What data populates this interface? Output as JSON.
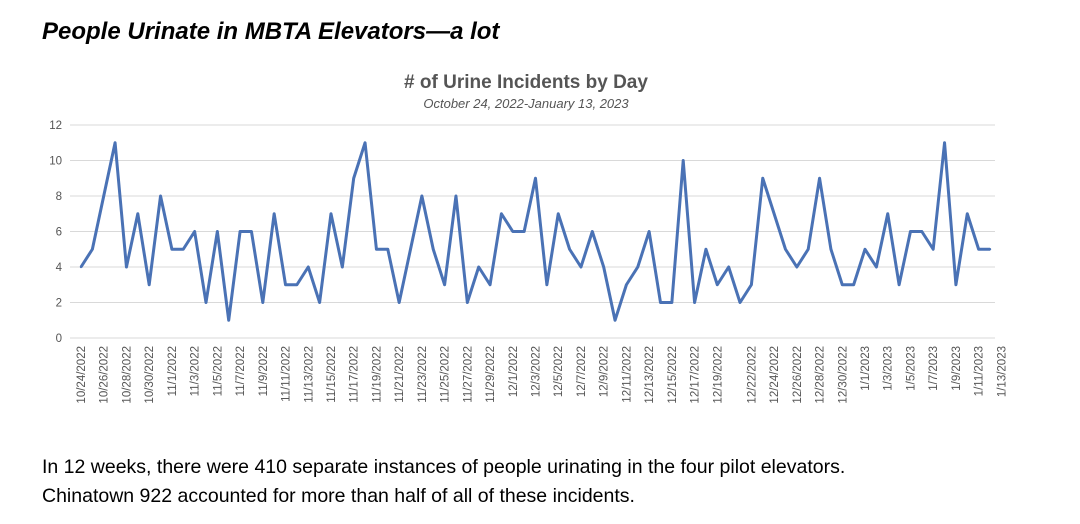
{
  "slide": {
    "title": "People Urinate in MBTA Elevators—a lot",
    "caption_line1": "In 12 weeks, there were 410 separate instances of people urinating in the four pilot elevators.",
    "caption_line2": "Chinatown 922 accounted for more than half of all of these incidents."
  },
  "colors": {
    "series": "#4a72b5",
    "grid": "#d9d9d9",
    "text": "#555555"
  },
  "chart_data": {
    "type": "line",
    "title": "# of Urine Incidents by Day",
    "subtitle": "October 24, 2022-January 13, 2023",
    "xlabel": "",
    "ylabel": "",
    "ylim": [
      0,
      12
    ],
    "yticks": [
      0,
      2,
      4,
      6,
      8,
      10,
      12
    ],
    "grid": true,
    "legend": "none",
    "x_start": "10/24/2022",
    "x_tick_labels": [
      "10/24/2022",
      "10/26/2022",
      "10/28/2022",
      "10/30/2022",
      "11/1/2022",
      "11/3/2022",
      "11/5/2022",
      "11/7/2022",
      "11/9/2022",
      "11/11/2022",
      "11/13/2022",
      "11/15/2022",
      "11/17/2022",
      "11/19/2022",
      "11/21/2022",
      "11/23/2022",
      "11/25/2022",
      "11/27/2022",
      "11/29/2022",
      "12/1/2022",
      "12/3/2022",
      "12/5/2022",
      "12/7/2022",
      "12/9/2022",
      "12/11/2022",
      "12/13/2022",
      "12/15/2022",
      "12/17/2022",
      "12/19/2022",
      "12/22/2022",
      "12/24/2022",
      "12/26/2022",
      "12/28/2022",
      "12/30/2022",
      "1/1/2023",
      "1/3/2023",
      "1/5/2023",
      "1/7/2023",
      "1/9/2023",
      "1/11/2023",
      "1/13/2023"
    ],
    "series": [
      {
        "values": [
          4,
          5,
          8,
          11,
          4,
          7,
          3,
          8,
          5,
          5,
          6,
          2,
          6,
          1,
          6,
          6,
          2,
          7,
          3,
          3,
          4,
          2,
          7,
          4,
          9,
          11,
          5,
          5,
          2,
          5,
          8,
          5,
          3,
          8,
          2,
          4,
          3,
          7,
          6,
          6,
          9,
          3,
          7,
          5,
          4,
          6,
          4,
          1,
          3,
          4,
          6,
          2,
          2,
          10,
          2,
          5,
          3,
          4,
          2,
          3,
          9,
          7,
          5,
          4,
          5,
          9,
          5,
          3,
          3,
          5,
          4,
          7,
          3,
          6,
          6,
          5,
          11,
          3,
          7,
          5,
          5
        ]
      }
    ]
  }
}
